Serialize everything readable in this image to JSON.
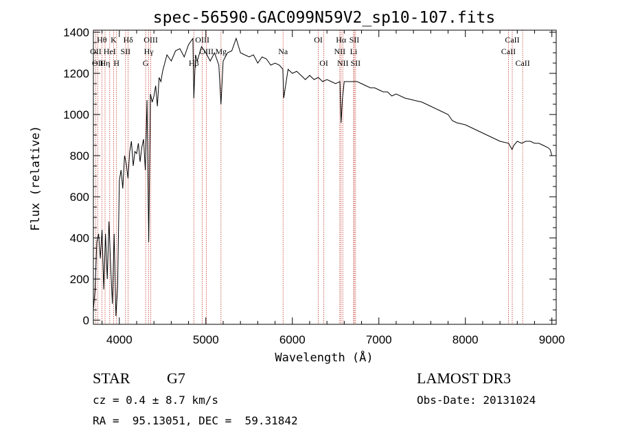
{
  "chart_data": {
    "type": "line",
    "title": "spec-56590-GAC099N59V2_sp10-107.fits",
    "xlabel": "Wavelength (Å)",
    "ylabel": "Flux (relative)",
    "xlim": [
      3700,
      9050
    ],
    "ylim": [
      -20,
      1410
    ],
    "xticks": [
      4000,
      5000,
      6000,
      7000,
      8000,
      9000
    ],
    "yticks": [
      0,
      200,
      400,
      600,
      800,
      1000,
      1200,
      1400
    ],
    "series": [
      {
        "name": "flux",
        "x": [
          3700,
          3720,
          3740,
          3760,
          3780,
          3800,
          3820,
          3840,
          3860,
          3880,
          3900,
          3920,
          3940,
          3960,
          3980,
          4000,
          4020,
          4040,
          4060,
          4080,
          4100,
          4120,
          4140,
          4160,
          4180,
          4200,
          4220,
          4240,
          4260,
          4280,
          4300,
          4320,
          4340,
          4360,
          4380,
          4400,
          4420,
          4440,
          4460,
          4480,
          4500,
          4550,
          4600,
          4650,
          4700,
          4750,
          4800,
          4850,
          4861,
          4880,
          4900,
          4950,
          5000,
          5050,
          5100,
          5150,
          5175,
          5200,
          5250,
          5300,
          5350,
          5400,
          5450,
          5500,
          5550,
          5600,
          5650,
          5700,
          5750,
          5800,
          5850,
          5890,
          5900,
          5950,
          6000,
          6050,
          6100,
          6150,
          6200,
          6250,
          6300,
          6350,
          6400,
          6450,
          6500,
          6550,
          6563,
          6580,
          6600,
          6650,
          6700,
          6750,
          6800,
          6850,
          6900,
          6950,
          7000,
          7050,
          7100,
          7150,
          7200,
          7300,
          7400,
          7500,
          7600,
          7700,
          7800,
          7850,
          7900,
          8000,
          8100,
          8200,
          8300,
          8400,
          8500,
          8540,
          8560,
          8600,
          8650,
          8700,
          8750,
          8800,
          8850,
          8900,
          8950,
          8980,
          9000
        ],
        "y": [
          50,
          150,
          380,
          420,
          300,
          440,
          150,
          420,
          200,
          480,
          260,
          80,
          420,
          20,
          160,
          680,
          730,
          640,
          800,
          760,
          690,
          820,
          870,
          750,
          820,
          810,
          860,
          770,
          840,
          880,
          730,
          1070,
          380,
          1100,
          1060,
          1090,
          1140,
          1040,
          1180,
          1160,
          1210,
          1290,
          1260,
          1310,
          1320,
          1280,
          1340,
          1370,
          1080,
          1290,
          1260,
          1330,
          1300,
          1260,
          1300,
          1240,
          1050,
          1260,
          1300,
          1310,
          1370,
          1300,
          1290,
          1280,
          1290,
          1250,
          1280,
          1270,
          1240,
          1250,
          1240,
          1220,
          1080,
          1220,
          1200,
          1210,
          1190,
          1170,
          1190,
          1170,
          1180,
          1160,
          1170,
          1160,
          1150,
          1160,
          960,
          1080,
          1160,
          1160,
          1160,
          1160,
          1150,
          1140,
          1130,
          1130,
          1120,
          1110,
          1110,
          1090,
          1100,
          1080,
          1070,
          1060,
          1040,
          1020,
          1000,
          970,
          960,
          950,
          930,
          910,
          890,
          870,
          860,
          830,
          850,
          870,
          860,
          870,
          870,
          860,
          860,
          850,
          840,
          830,
          800
        ]
      }
    ],
    "lines": [
      {
        "x": 3727,
        "labels": [
          "OII"
        ],
        "row": 2
      },
      {
        "x": 3750,
        "labels": [
          "OII"
        ],
        "row": 3
      },
      {
        "x": 3798,
        "labels": [
          "Hθ"
        ],
        "row": 1
      },
      {
        "x": 3835,
        "labels": [
          "Hη"
        ],
        "row": 3
      },
      {
        "x": 3889,
        "labels": [
          "HeI"
        ],
        "row": 2
      },
      {
        "x": 3934,
        "labels": [
          "K"
        ],
        "row": 1
      },
      {
        "x": 3968,
        "labels": [
          "H"
        ],
        "row": 3
      },
      {
        "x": 4072,
        "labels": [
          "SII"
        ],
        "row": 2
      },
      {
        "x": 4102,
        "labels": [
          "Hδ"
        ],
        "row": 1
      },
      {
        "x": 4304,
        "labels": [
          "G"
        ],
        "row": 3
      },
      {
        "x": 4340,
        "labels": [
          "Hγ"
        ],
        "row": 2
      },
      {
        "x": 4363,
        "labels": [
          "OIII"
        ],
        "row": 1
      },
      {
        "x": 4861,
        "labels": [
          "Hβ"
        ],
        "row": 3
      },
      {
        "x": 4959,
        "labels": [
          "OIII"
        ],
        "row": 1
      },
      {
        "x": 5007,
        "labels": [
          "OIII"
        ],
        "row": 2
      },
      {
        "x": 5175,
        "labels": [
          "Mg"
        ],
        "row": 2
      },
      {
        "x": 5893,
        "labels": [
          "Na"
        ],
        "row": 2
      },
      {
        "x": 6300,
        "labels": [
          "OI"
        ],
        "row": 1
      },
      {
        "x": 6364,
        "labels": [
          "OI"
        ],
        "row": 3
      },
      {
        "x": 6548,
        "labels": [
          "NII"
        ],
        "row": 2
      },
      {
        "x": 6563,
        "labels": [
          "Hα"
        ],
        "row": 1
      },
      {
        "x": 6583,
        "labels": [
          "NII"
        ],
        "row": 3
      },
      {
        "x": 6708,
        "labels": [
          "Li"
        ],
        "row": 2
      },
      {
        "x": 6716,
        "labels": [
          "SII"
        ],
        "row": 1
      },
      {
        "x": 6731,
        "labels": [
          "SII"
        ],
        "row": 3
      },
      {
        "x": 8498,
        "labels": [
          "CaII"
        ],
        "row": 2
      },
      {
        "x": 8542,
        "labels": [
          "CaII"
        ],
        "row": 1
      },
      {
        "x": 8662,
        "labels": [
          "CaII"
        ],
        "row": 3
      }
    ]
  },
  "info": {
    "class": "STAR",
    "subclass": "G7",
    "survey": "LAMOST DR3",
    "cz": "cz = 0.4 ± 8.7 km/s",
    "obs_date": "Obs-Date: 20131024",
    "radec": "RA =  95.13051, DEC =  59.31842"
  }
}
